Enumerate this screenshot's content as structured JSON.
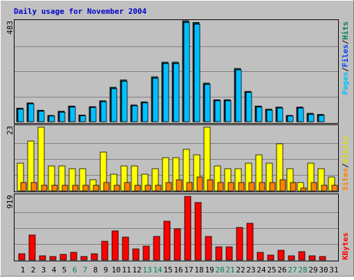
{
  "title": "Daily usage for November 2004",
  "colors": {
    "background": "#c0c0c0",
    "title": "#0000cc",
    "hits": "#00805c",
    "files": "#0040ff",
    "pages": "#00c0ff",
    "visits": "#ffff00",
    "sites": "#ff8000",
    "kbytes": "#ff0000",
    "weekend_day": "#00805c",
    "weekday_day": "#000000"
  },
  "chart_data": [
    {
      "type": "bar",
      "panel": "hits-files-pages",
      "ymax_label": "483",
      "ylim": [
        0,
        483
      ],
      "legend": [
        "Pages",
        "/",
        "Files",
        "/",
        "Hits"
      ],
      "x": [
        1,
        2,
        3,
        4,
        5,
        6,
        7,
        8,
        9,
        10,
        11,
        12,
        13,
        14,
        15,
        16,
        17,
        18,
        19,
        20,
        21,
        22,
        23,
        24,
        25,
        26,
        27,
        28,
        29,
        30,
        31
      ],
      "weekend_days": [
        6,
        7,
        13,
        14,
        20,
        21,
        27,
        28
      ],
      "series": [
        {
          "name": "Hits",
          "values": [
            65,
            90,
            55,
            30,
            50,
            75,
            32,
            72,
            100,
            165,
            200,
            80,
            95,
            215,
            285,
            285,
            483,
            475,
            185,
            105,
            105,
            255,
            145,
            75,
            60,
            70,
            30,
            70,
            40,
            35,
            0
          ]
        },
        {
          "name": "Files",
          "values": [
            62,
            87,
            52,
            28,
            48,
            72,
            30,
            70,
            97,
            160,
            195,
            78,
            92,
            210,
            280,
            280,
            478,
            470,
            180,
            102,
            102,
            250,
            142,
            72,
            57,
            67,
            28,
            67,
            37,
            32,
            0
          ]
        },
        {
          "name": "Pages",
          "values": [
            60,
            85,
            50,
            27,
            45,
            70,
            28,
            68,
            95,
            158,
            193,
            76,
            90,
            208,
            278,
            278,
            474,
            466,
            178,
            100,
            100,
            248,
            140,
            70,
            55,
            65,
            27,
            65,
            35,
            30,
            0
          ]
        }
      ]
    },
    {
      "type": "bar",
      "panel": "visits-sites",
      "ymax_label": "23",
      "ylim": [
        0,
        23
      ],
      "legend": [
        "Sites",
        "/",
        "Visits"
      ],
      "x": [
        1,
        2,
        3,
        4,
        5,
        6,
        7,
        8,
        9,
        10,
        11,
        12,
        13,
        14,
        15,
        16,
        17,
        18,
        19,
        20,
        21,
        22,
        23,
        24,
        25,
        26,
        27,
        28,
        29,
        30,
        31
      ],
      "series": [
        {
          "name": "Visits",
          "values": [
            10,
            18,
            23,
            9,
            9,
            8,
            8,
            4,
            14,
            6,
            9,
            9,
            6,
            8,
            12,
            12,
            15,
            13,
            23,
            9,
            8,
            8,
            10,
            13,
            10,
            17,
            8,
            3,
            10,
            8,
            5
          ]
        },
        {
          "name": "Sites",
          "values": [
            3,
            3,
            2,
            2,
            2,
            2,
            2,
            2,
            3,
            2,
            3,
            2,
            2,
            2,
            3,
            4,
            3,
            5,
            4,
            3,
            3,
            3,
            3,
            3,
            3,
            4,
            3,
            1,
            3,
            2,
            2
          ]
        }
      ]
    },
    {
      "type": "bar",
      "panel": "kbytes",
      "ymax_label": "919",
      "ylim": [
        0,
        919
      ],
      "legend": [
        "KBytes"
      ],
      "x": [
        1,
        2,
        3,
        4,
        5,
        6,
        7,
        8,
        9,
        10,
        11,
        12,
        13,
        14,
        15,
        16,
        17,
        18,
        19,
        20,
        21,
        22,
        23,
        24,
        25,
        26,
        27,
        28,
        29,
        30,
        31
      ],
      "series": [
        {
          "name": "KBytes",
          "values": [
            90,
            360,
            60,
            50,
            80,
            110,
            50,
            90,
            270,
            420,
            330,
            160,
            200,
            340,
            560,
            450,
            919,
            830,
            340,
            190,
            190,
            470,
            530,
            110,
            70,
            140,
            60,
            120,
            60,
            50,
            0
          ]
        }
      ]
    }
  ]
}
